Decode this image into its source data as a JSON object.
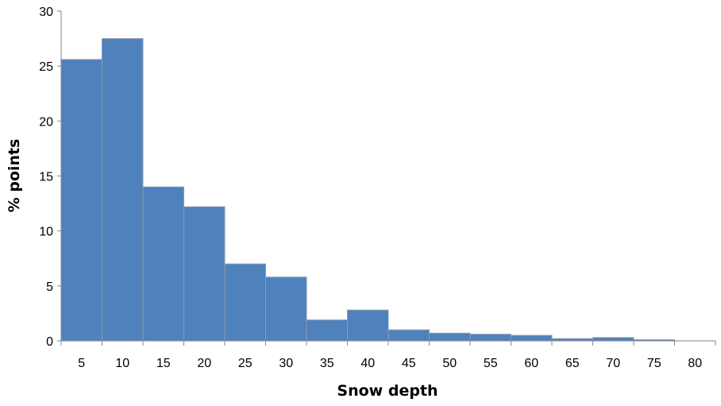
{
  "chart_data": {
    "type": "bar",
    "title": "",
    "xlabel": "Snow depth",
    "ylabel": "% points",
    "categories": [
      "5",
      "10",
      "15",
      "20",
      "25",
      "30",
      "35",
      "40",
      "45",
      "50",
      "55",
      "60",
      "65",
      "70",
      "75",
      "80"
    ],
    "series": [
      {
        "values": [
          25.6,
          27.5,
          14.0,
          12.2,
          7.0,
          5.8,
          1.9,
          2.8,
          1.0,
          0.7,
          0.6,
          0.5,
          0.2,
          0.3,
          0.1,
          0.0
        ]
      }
    ],
    "ylim": [
      0,
      30
    ],
    "yticks": [
      "0",
      "5",
      "10",
      "15",
      "20",
      "25",
      "30"
    ],
    "grid": false,
    "legend": "none",
    "colors": {
      "bar": "#4f81bd",
      "axis": "#868686"
    }
  }
}
